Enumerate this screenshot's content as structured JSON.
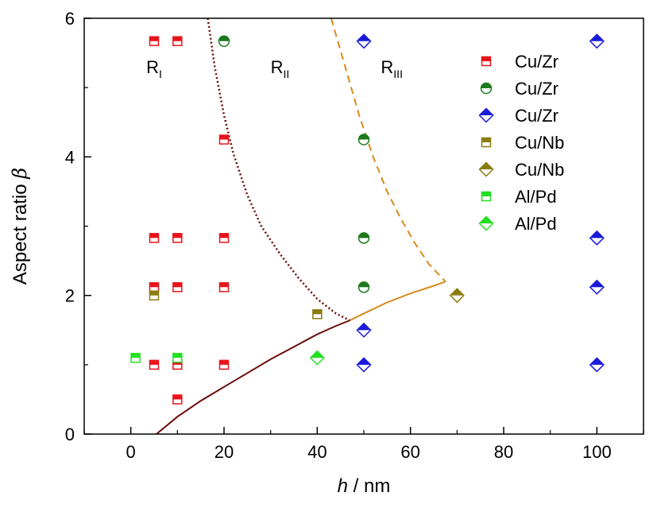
{
  "chart_data": {
    "type": "scatter",
    "xlim": [
      -10,
      110
    ],
    "ylim": [
      0,
      6
    ],
    "x_ticks": [
      0,
      20,
      40,
      60,
      80,
      100
    ],
    "y_ticks": [
      0,
      2,
      4,
      6
    ],
    "x_tick_labels": [
      "0",
      "20",
      "40",
      "60",
      "80",
      "100"
    ],
    "y_tick_labels": [
      "0",
      "2",
      "4",
      "6"
    ],
    "xlabel": {
      "var": "h",
      "unit": " / nm"
    },
    "ylabel": {
      "text": "Aspect ratio ",
      "symbol": "β"
    },
    "grid": false,
    "legend_position": "top-right",
    "regions": [
      {
        "main": "R",
        "sub": "I",
        "x": 5,
        "y": 5.3
      },
      {
        "main": "R",
        "sub": "II",
        "x": 32,
        "y": 5.3
      },
      {
        "main": "R",
        "sub": "III",
        "x": 56,
        "y": 5.3
      }
    ],
    "series": [
      {
        "name": "Cu/Zr",
        "marker": "square",
        "color": "#e8141b",
        "points": [
          [
            5,
            5.67
          ],
          [
            10,
            5.67
          ],
          [
            20,
            4.25
          ],
          [
            5,
            2.83
          ],
          [
            10,
            2.83
          ],
          [
            20,
            2.83
          ],
          [
            5,
            2.12
          ],
          [
            10,
            2.12
          ],
          [
            20,
            2.12
          ],
          [
            5,
            1.0
          ],
          [
            10,
            1.0
          ],
          [
            20,
            1.0
          ],
          [
            10,
            0.5
          ]
        ]
      },
      {
        "name": "Cu/Zr",
        "marker": "circle",
        "color": "#1c7a1c",
        "points": [
          [
            20,
            5.67
          ],
          [
            50,
            4.25
          ],
          [
            50,
            2.83
          ],
          [
            50,
            2.12
          ]
        ]
      },
      {
        "name": "Cu/Zr",
        "marker": "diamond",
        "color": "#1a1adb",
        "points": [
          [
            50,
            5.67
          ],
          [
            100,
            5.67
          ],
          [
            100,
            2.83
          ],
          [
            100,
            2.12
          ],
          [
            50,
            1.5
          ],
          [
            50,
            1.0
          ],
          [
            100,
            1.0
          ]
        ]
      },
      {
        "name": "Cu/Nb",
        "marker": "square",
        "color": "#8a7d10",
        "points": [
          [
            5,
            2.0
          ],
          [
            40,
            1.73
          ]
        ]
      },
      {
        "name": "Cu/Nb",
        "marker": "diamond",
        "color": "#8a7d10",
        "points": [
          [
            70,
            2.0
          ]
        ]
      },
      {
        "name": "Al/Pd",
        "marker": "square",
        "color": "#22e022",
        "points": [
          [
            1,
            1.1
          ],
          [
            10,
            1.1
          ]
        ]
      },
      {
        "name": "Al/Pd",
        "marker": "diamond",
        "color": "#22e022",
        "points": [
          [
            40,
            1.1
          ]
        ]
      }
    ],
    "boundary_curves": [
      {
        "style": "solid",
        "color": "#6b0a0a",
        "points": [
          [
            5.5,
            0
          ],
          [
            10,
            0.25
          ],
          [
            15,
            0.48
          ],
          [
            20,
            0.68
          ],
          [
            25,
            0.88
          ],
          [
            30,
            1.08
          ],
          [
            35,
            1.26
          ],
          [
            40,
            1.44
          ],
          [
            44,
            1.56
          ],
          [
            47,
            1.64
          ]
        ]
      },
      {
        "style": "solid",
        "color": "#d98a1c",
        "points": [
          [
            47,
            1.64
          ],
          [
            50,
            1.74
          ],
          [
            55,
            1.9
          ],
          [
            60,
            2.03
          ],
          [
            65,
            2.14
          ],
          [
            67.5,
            2.2
          ]
        ]
      },
      {
        "style": "dotted",
        "color": "#6b0a0a",
        "points": [
          [
            16.5,
            6.0
          ],
          [
            18,
            5.3
          ],
          [
            20,
            4.6
          ],
          [
            22,
            4.05
          ],
          [
            25,
            3.45
          ],
          [
            28,
            3.0
          ],
          [
            32,
            2.6
          ],
          [
            36,
            2.25
          ],
          [
            40,
            1.95
          ],
          [
            44,
            1.74
          ],
          [
            47,
            1.64
          ]
        ]
      },
      {
        "style": "dashed",
        "color": "#d98a1c",
        "points": [
          [
            43,
            6.0
          ],
          [
            46,
            5.3
          ],
          [
            49,
            4.6
          ],
          [
            52,
            4.0
          ],
          [
            55,
            3.5
          ],
          [
            58,
            3.1
          ],
          [
            61,
            2.75
          ],
          [
            64,
            2.45
          ],
          [
            67.5,
            2.2
          ]
        ]
      }
    ]
  }
}
